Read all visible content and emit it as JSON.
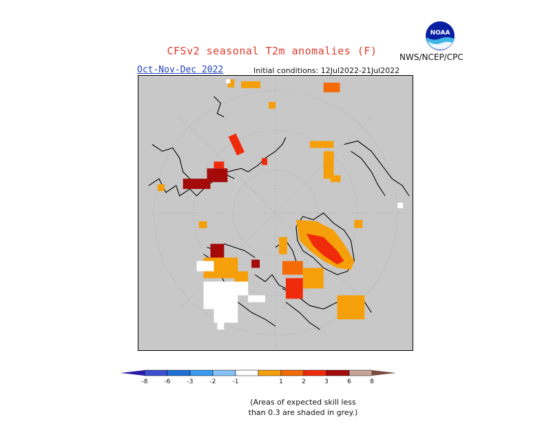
{
  "header": {
    "title": "CFSv2 seasonal T2m anomalies (F)",
    "agency": "NWS/NCEP/CPC",
    "period": "Oct-Nov-Dec 2022",
    "initial_conditions": "Initial conditions: 12Jul2022-21Jul2022",
    "logo": "noaa-logo"
  },
  "map": {
    "projection": "north-polar-stereographic",
    "background_color": "#c8c8c8",
    "coastline_color": "#000000"
  },
  "legend": {
    "bins": [
      {
        "label": "-8",
        "color": "#2a1ca8"
      },
      {
        "label": "-6",
        "color": "#3b4fd1"
      },
      {
        "label": "-3",
        "color": "#1f70d6"
      },
      {
        "label": "-2",
        "color": "#3a9af0"
      },
      {
        "label": "-1",
        "color": "#86c2f6"
      },
      {
        "label": "",
        "color": "#ffffff"
      },
      {
        "label": "1",
        "color": "#f5a00a"
      },
      {
        "label": "2",
        "color": "#f46b08"
      },
      {
        "label": "3",
        "color": "#f02b0b"
      },
      {
        "label": "6",
        "color": "#a50a0a"
      },
      {
        "label": "8",
        "color": "#c8a498"
      },
      {
        "label": "",
        "color": "#7a4b40"
      }
    ],
    "tick_labels": [
      "-8",
      "-6",
      "-3",
      "-2",
      "-1",
      "1",
      "2",
      "3",
      "6",
      "8"
    ]
  },
  "footnote": {
    "line1": "(Areas of expected skill less",
    "line2": "than 0.3 are shaded in grey.)"
  }
}
